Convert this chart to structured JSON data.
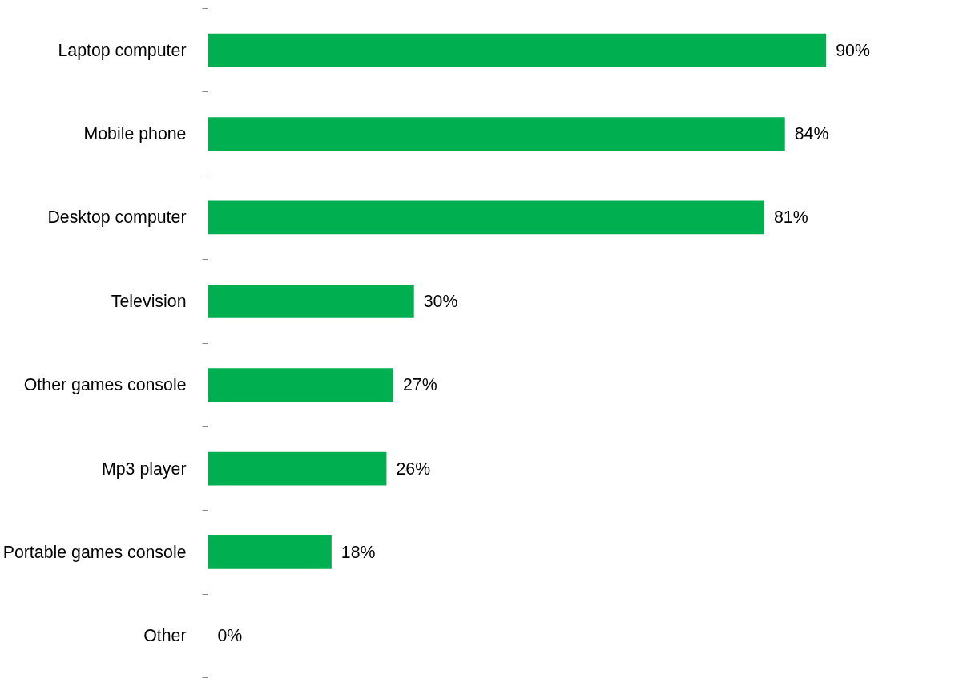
{
  "chart_data": {
    "type": "bar",
    "orientation": "horizontal",
    "categories": [
      "Laptop computer",
      "Mobile phone",
      "Desktop computer",
      "Television",
      "Other games console",
      "Mp3 player",
      "Portable games console",
      "Other"
    ],
    "values": [
      90,
      84,
      81,
      30,
      27,
      26,
      18,
      0
    ],
    "color": "#00b050",
    "value_labels": [
      "90%",
      "84%",
      "81%",
      "30%",
      "27%",
      "26%",
      "18%",
      "0%"
    ]
  }
}
